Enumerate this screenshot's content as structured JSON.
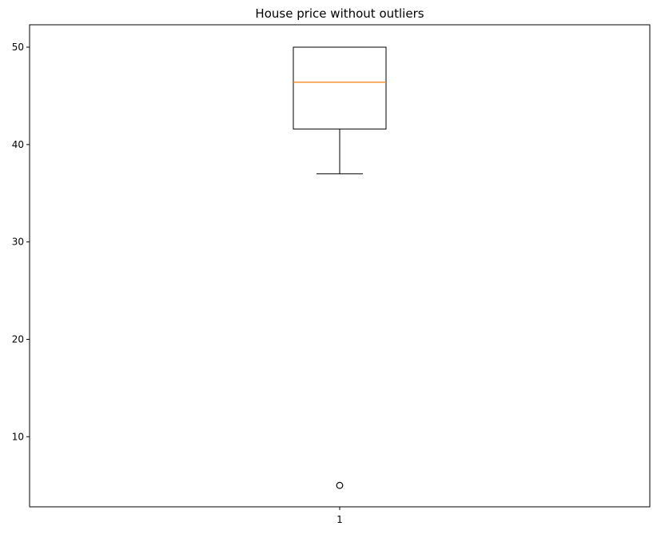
{
  "chart_data": {
    "type": "box",
    "title": "House price without outliers",
    "xlabel": "",
    "ylabel": "",
    "categories": [
      "1"
    ],
    "ylim": [
      2.8,
      52.3
    ],
    "yticks": [
      10,
      20,
      30,
      40,
      50
    ],
    "grid": false,
    "boxes": [
      {
        "category": "1",
        "whisker_low": 37.0,
        "q1": 41.6,
        "median": 46.4,
        "q3": 50.0,
        "whisker_high": 50.0,
        "outliers": [
          5.0
        ]
      }
    ],
    "colors": {
      "box": "#000000",
      "median": "#ff7f0e",
      "outlier": "#000000"
    }
  }
}
